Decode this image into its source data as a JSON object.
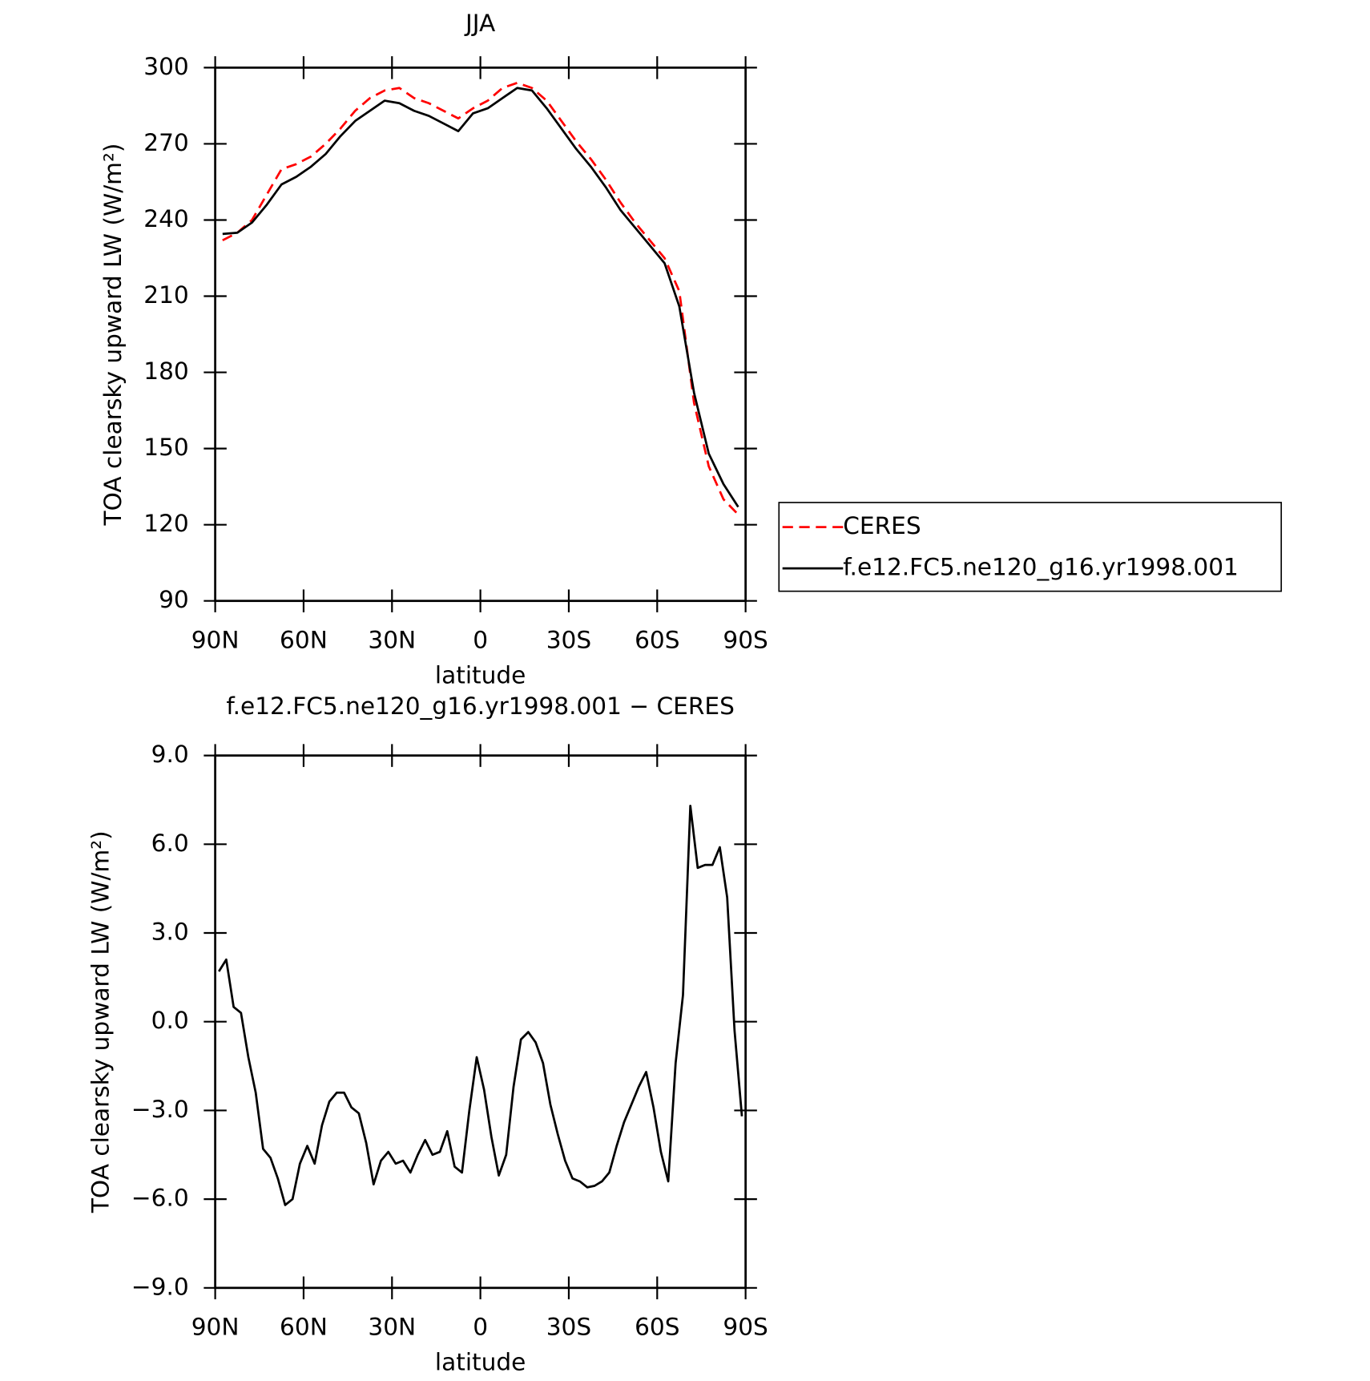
{
  "chart_data": [
    {
      "type": "line",
      "title": "JJA",
      "xlabel": "latitude",
      "ylabel": "TOA clearsky upward LW (W/m²)",
      "x": [
        87.5,
        82.5,
        77.5,
        72.5,
        67.5,
        62.5,
        57.5,
        52.5,
        47.5,
        42.5,
        37.5,
        32.5,
        27.5,
        22.5,
        17.5,
        12.5,
        7.5,
        2.5,
        -2.5,
        -7.5,
        -12.5,
        -17.5,
        -22.5,
        -27.5,
        -32.5,
        -37.5,
        -42.5,
        -47.5,
        -52.5,
        -57.5,
        -62.5,
        -67.5,
        -72.5,
        -77.5,
        -82.5,
        -87.5
      ],
      "xlim": [
        90,
        -90
      ],
      "xticks": [
        {
          "value": 90,
          "label": "90N"
        },
        {
          "value": 60,
          "label": "60N"
        },
        {
          "value": 30,
          "label": "30N"
        },
        0,
        {
          "value": -30,
          "label": "30S"
        },
        {
          "value": -60,
          "label": "60S"
        },
        {
          "value": -90,
          "label": "90S"
        }
      ],
      "ylim": [
        90,
        300
      ],
      "yticks": [
        90,
        120,
        150,
        180,
        210,
        240,
        270,
        300
      ],
      "legend": "outside-right",
      "series": [
        {
          "name": "CERES",
          "color": "#ff0000",
          "linestyle": "dashed",
          "values": [
            232,
            235,
            240,
            250,
            260,
            262,
            265,
            270,
            276,
            283,
            288,
            291,
            292,
            288,
            286,
            283,
            280,
            284,
            287,
            292,
            294,
            292,
            287,
            279,
            271,
            264,
            256,
            247,
            239,
            232,
            225,
            212,
            168,
            143,
            130,
            124
          ]
        },
        {
          "name": "f.e12.FC5.ne120_g16.yr1998.001",
          "color": "#000000",
          "linestyle": "solid",
          "values": [
            234.5,
            235,
            239,
            246,
            254,
            257,
            261,
            266,
            273,
            279,
            283,
            287,
            286,
            283,
            281,
            278,
            275,
            282,
            284,
            288,
            292,
            291,
            284,
            276,
            268,
            261,
            253,
            244,
            237,
            230,
            223,
            206,
            172,
            148,
            136,
            127
          ]
        }
      ]
    },
    {
      "type": "line",
      "title": "f.e12.FC5.ne120_g16.yr1998.001 − CERES",
      "xlabel": "latitude",
      "ylabel": "TOA clearsky upward LW (W/m²)",
      "x": [
        88.75,
        86.25,
        83.75,
        81.25,
        78.75,
        76.25,
        73.75,
        71.25,
        68.75,
        66.25,
        63.75,
        61.25,
        58.75,
        56.25,
        53.75,
        51.25,
        48.75,
        46.25,
        43.75,
        41.25,
        38.75,
        36.25,
        33.75,
        31.25,
        28.75,
        26.25,
        23.75,
        21.25,
        18.75,
        16.25,
        13.75,
        11.25,
        8.75,
        6.25,
        3.75,
        1.25,
        -1.25,
        -3.75,
        -6.25,
        -8.75,
        -11.25,
        -13.75,
        -16.25,
        -18.75,
        -21.25,
        -23.75,
        -26.25,
        -28.75,
        -31.25,
        -33.75,
        -36.25,
        -38.75,
        -41.25,
        -43.75,
        -46.25,
        -48.75,
        -51.25,
        -53.75,
        -56.25,
        -58.75,
        -61.25,
        -63.75,
        -66.25,
        -68.75,
        -71.25,
        -73.75,
        -76.25,
        -78.75,
        -81.25,
        -83.75,
        -86.25,
        -88.75
      ],
      "xlim": [
        90,
        -90
      ],
      "xticks": [
        {
          "value": 90,
          "label": "90N"
        },
        {
          "value": 60,
          "label": "60N"
        },
        {
          "value": 30,
          "label": "30N"
        },
        0,
        {
          "value": -30,
          "label": "30S"
        },
        {
          "value": -60,
          "label": "60S"
        },
        {
          "value": -90,
          "label": "90S"
        }
      ],
      "ylim": [
        -9,
        9
      ],
      "yticks": [
        {
          "value": 9,
          "label": "9.0"
        },
        {
          "value": 6,
          "label": "6.0"
        },
        {
          "value": 3,
          "label": "3.0"
        },
        {
          "value": 0,
          "label": "0.0"
        },
        {
          "value": -3,
          "label": "−3.0"
        },
        {
          "value": -6,
          "label": "−6.0"
        },
        {
          "value": -9,
          "label": "−9.0"
        }
      ],
      "series": [
        {
          "color": "#000000",
          "linestyle": "solid",
          "values": [
            1.7,
            2.1,
            0.5,
            0.3,
            -1.2,
            -2.4,
            -4.3,
            -4.6,
            -5.3,
            -6.2,
            -6.0,
            -4.8,
            -4.2,
            -4.8,
            -3.5,
            -2.7,
            -2.4,
            -2.4,
            -2.9,
            -3.1,
            -4.1,
            -5.5,
            -4.7,
            -4.4,
            -4.8,
            -4.7,
            -5.1,
            -4.5,
            -4.0,
            -4.5,
            -4.4,
            -3.7,
            -4.9,
            -5.1,
            -3.0,
            -1.2,
            -2.3,
            -3.9,
            -5.2,
            -4.5,
            -2.2,
            -0.6,
            -0.35,
            -0.7,
            -1.4,
            -2.8,
            -3.8,
            -4.7,
            -5.3,
            -5.4,
            -5.6,
            -5.55,
            -5.4,
            -5.1,
            -4.2,
            -3.4,
            -2.8,
            -2.2,
            -1.7,
            -2.9,
            -4.4,
            -5.4,
            -1.4,
            0.9,
            7.3,
            5.2,
            5.3,
            5.3,
            5.9,
            4.2,
            -0.3,
            -3.2
          ]
        }
      ]
    }
  ]
}
